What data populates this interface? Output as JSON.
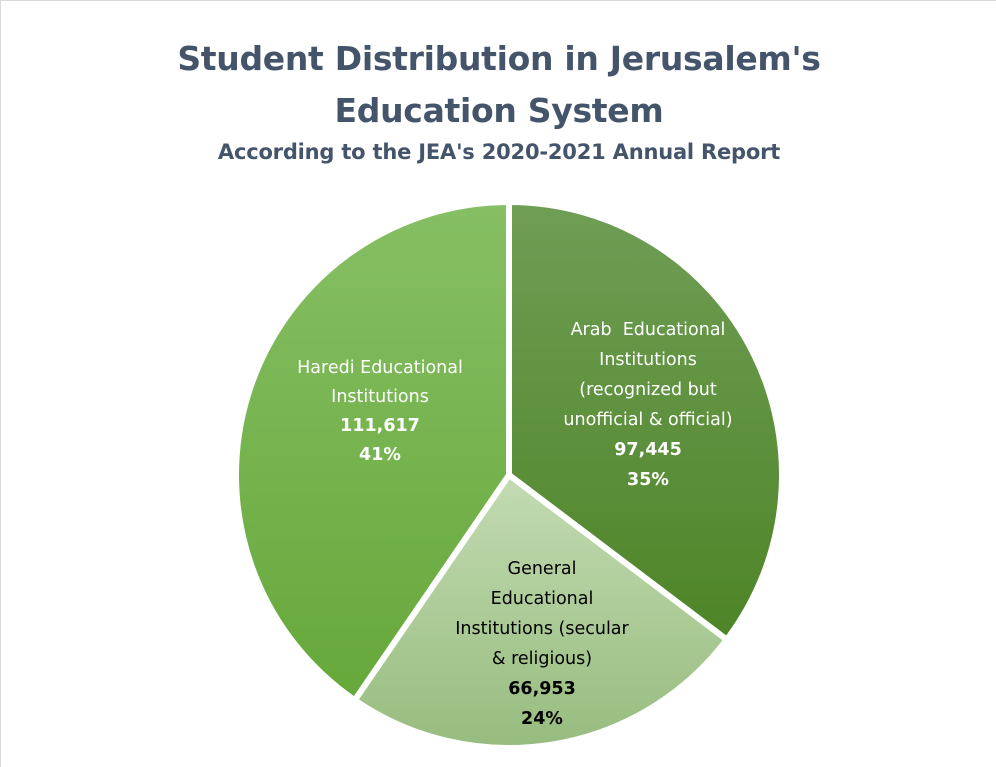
{
  "chart_data": {
    "type": "pie",
    "title_lines": [
      "Student Distribution in Jerusalem's",
      "Education System"
    ],
    "subtitle": "According to the JEA's 2020-2021 Annual Report",
    "slices": [
      {
        "label_lines": [
          "Arab  Educational",
          "Institutions",
          "(recognized but",
          "unofficial & official)"
        ],
        "value": 97445,
        "value_text": "97,445",
        "percent_text": "35%",
        "color_top": "#6f9e55",
        "color_bottom": "#4e8427",
        "text_color": "#ffffff"
      },
      {
        "label_lines": [
          "General",
          "Educational",
          "Institutions (secular",
          "& religious)"
        ],
        "value": 66953,
        "value_text": "66,953",
        "percent_text": "24%",
        "color_top": "#c3dbb3",
        "color_bottom": "#97bc7e",
        "text_color": "#000000"
      },
      {
        "label_lines": [
          "Haredi Educational",
          "Institutions"
        ],
        "value": 111617,
        "value_text": "111,617",
        "percent_text": "41%",
        "color_top": "#86bf64",
        "color_bottom": "#66a83a",
        "text_color": "#ffffff"
      }
    ]
  }
}
